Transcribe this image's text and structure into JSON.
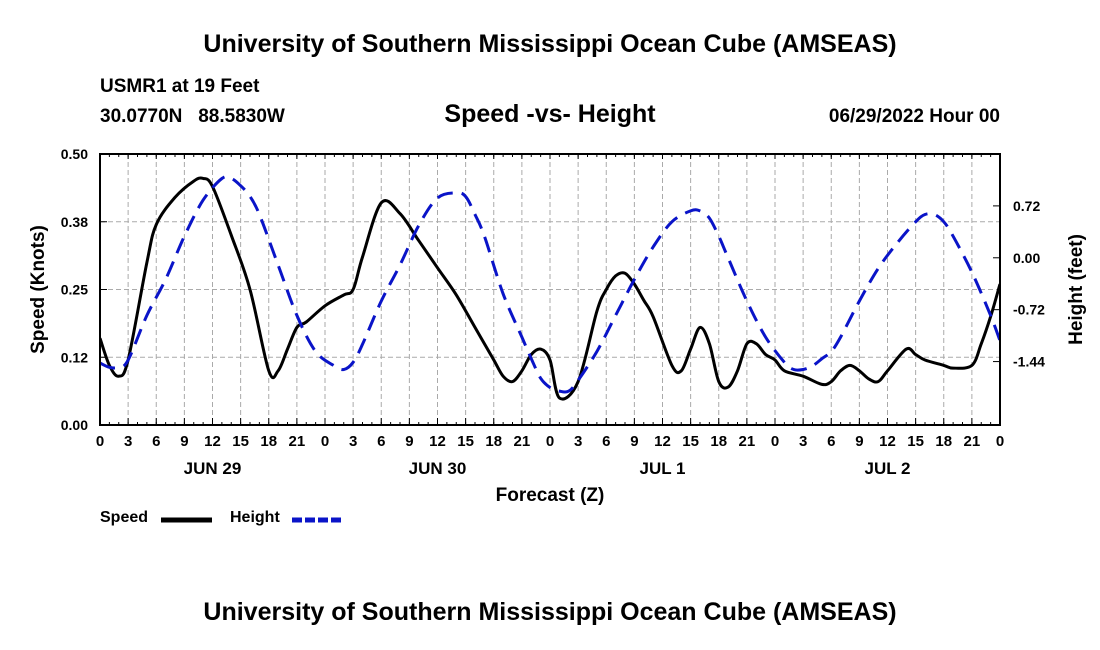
{
  "header": {
    "title": "University of Southern Mississippi Ocean Cube (AMSEAS)",
    "station": "USMR1 at 19 Feet",
    "coordinates": "30.0770N   88.5830W",
    "chart_title": "Speed -vs- Height",
    "date_hour": "06/29/2022 Hour 00"
  },
  "footer": {
    "title": "University of Southern Mississippi Ocean Cube (AMSEAS)"
  },
  "legend": {
    "speed_label": "Speed",
    "height_label": "Height"
  },
  "colors": {
    "speed": "#000000",
    "height": "#0a14c8",
    "grid": "#aaaaaa"
  },
  "chart_data": {
    "type": "line",
    "title": "Speed -vs- Height",
    "xlabel": "Forecast (Z)",
    "ylabel_left": "Speed (Knots)",
    "ylabel_right": "Height (feet)",
    "x_range_hours": [
      0,
      96
    ],
    "x_tick_step_hours": 3,
    "x_tick_labels": [
      "0",
      "3",
      "6",
      "9",
      "12",
      "15",
      "18",
      "21",
      "0",
      "3",
      "6",
      "9",
      "12",
      "15",
      "18",
      "21",
      "0",
      "3",
      "6",
      "9",
      "12",
      "15",
      "18",
      "21",
      "0",
      "3",
      "6",
      "9",
      "12",
      "15",
      "18",
      "21",
      "0"
    ],
    "day_labels": [
      {
        "label": "JUN 29",
        "hour": 12
      },
      {
        "label": "JUN 30",
        "hour": 36
      },
      {
        "label": "JUL 1",
        "hour": 60
      },
      {
        "label": "JUL 2",
        "hour": 84
      }
    ],
    "ylim_left": [
      0,
      0.5
    ],
    "y_ticks_left": [
      {
        "value": 0.0,
        "label": "0.00"
      },
      {
        "value": 0.125,
        "label": "0.12"
      },
      {
        "value": 0.25,
        "label": "0.25"
      },
      {
        "value": 0.375,
        "label": "0.38"
      },
      {
        "value": 0.5,
        "label": "0.50"
      }
    ],
    "ylim_right": [
      -2.32,
      1.44
    ],
    "y_ticks_right": [
      {
        "value": 0.72,
        "label": "0.72"
      },
      {
        "value": 0.0,
        "label": "0.00"
      },
      {
        "value": -0.72,
        "label": "-0.72"
      },
      {
        "value": -1.44,
        "label": "-1.44"
      }
    ],
    "grid": true,
    "series": [
      {
        "name": "Speed",
        "axis": "left",
        "style": "solid",
        "x": [
          0,
          1,
          2,
          3,
          5,
          6,
          8,
          10,
          11,
          12,
          14,
          16,
          18,
          19,
          20,
          21,
          22,
          24,
          26,
          27,
          28,
          30,
          32,
          34,
          36,
          38,
          40,
          42,
          43,
          44,
          45,
          46,
          47,
          48,
          49,
          51,
          53,
          54,
          55,
          56,
          57,
          58,
          59,
          61,
          62,
          63,
          64,
          65,
          66,
          67,
          68,
          69,
          70,
          71,
          72,
          73,
          75,
          77,
          78,
          79,
          80,
          81,
          82,
          83,
          84,
          86,
          87,
          88,
          90,
          91,
          93,
          94,
          95,
          96
        ],
        "values": [
          0.16,
          0.11,
          0.09,
          0.12,
          0.3,
          0.37,
          0.42,
          0.45,
          0.455,
          0.44,
          0.35,
          0.25,
          0.1,
          0.1,
          0.14,
          0.18,
          0.19,
          0.22,
          0.24,
          0.25,
          0.31,
          0.41,
          0.39,
          0.34,
          0.29,
          0.24,
          0.18,
          0.12,
          0.09,
          0.08,
          0.1,
          0.13,
          0.14,
          0.12,
          0.05,
          0.08,
          0.21,
          0.25,
          0.275,
          0.28,
          0.26,
          0.23,
          0.2,
          0.11,
          0.1,
          0.14,
          0.18,
          0.15,
          0.08,
          0.07,
          0.1,
          0.15,
          0.15,
          0.13,
          0.12,
          0.1,
          0.09,
          0.075,
          0.08,
          0.1,
          0.11,
          0.1,
          0.085,
          0.08,
          0.1,
          0.14,
          0.13,
          0.12,
          0.11,
          0.105,
          0.11,
          0.15,
          0.2,
          0.26
        ]
      },
      {
        "name": "Height",
        "axis": "right",
        "style": "dashed",
        "x": [
          0,
          1,
          2,
          3,
          5,
          7,
          9,
          11,
          13,
          14,
          15,
          16,
          17,
          19,
          21,
          23,
          25,
          26,
          27,
          28,
          30,
          32,
          34,
          36,
          38,
          39,
          40,
          41,
          43,
          45,
          46,
          47,
          48,
          49,
          50,
          51,
          53,
          55,
          57,
          59,
          61,
          63,
          64,
          65,
          66,
          67,
          69,
          71,
          73,
          74,
          75,
          76,
          77,
          78,
          79,
          81,
          83,
          85,
          87,
          88,
          89,
          90,
          91,
          93,
          95,
          96
        ],
        "values": [
          -1.46,
          -1.52,
          -1.52,
          -1.42,
          -0.8,
          -0.3,
          0.3,
          0.8,
          1.1,
          1.1,
          1.0,
          0.85,
          0.6,
          -0.1,
          -0.8,
          -1.3,
          -1.5,
          -1.55,
          -1.45,
          -1.2,
          -0.6,
          -0.1,
          0.45,
          0.83,
          0.9,
          0.85,
          0.6,
          0.3,
          -0.5,
          -1.1,
          -1.4,
          -1.67,
          -1.8,
          -1.85,
          -1.85,
          -1.7,
          -1.3,
          -0.8,
          -0.3,
          0.15,
          0.5,
          0.65,
          0.65,
          0.55,
          0.3,
          0.0,
          -0.6,
          -1.1,
          -1.45,
          -1.55,
          -1.55,
          -1.5,
          -1.4,
          -1.3,
          -1.1,
          -0.6,
          -0.15,
          0.2,
          0.5,
          0.6,
          0.6,
          0.5,
          0.3,
          -0.2,
          -0.8,
          -1.15
        ]
      }
    ]
  }
}
